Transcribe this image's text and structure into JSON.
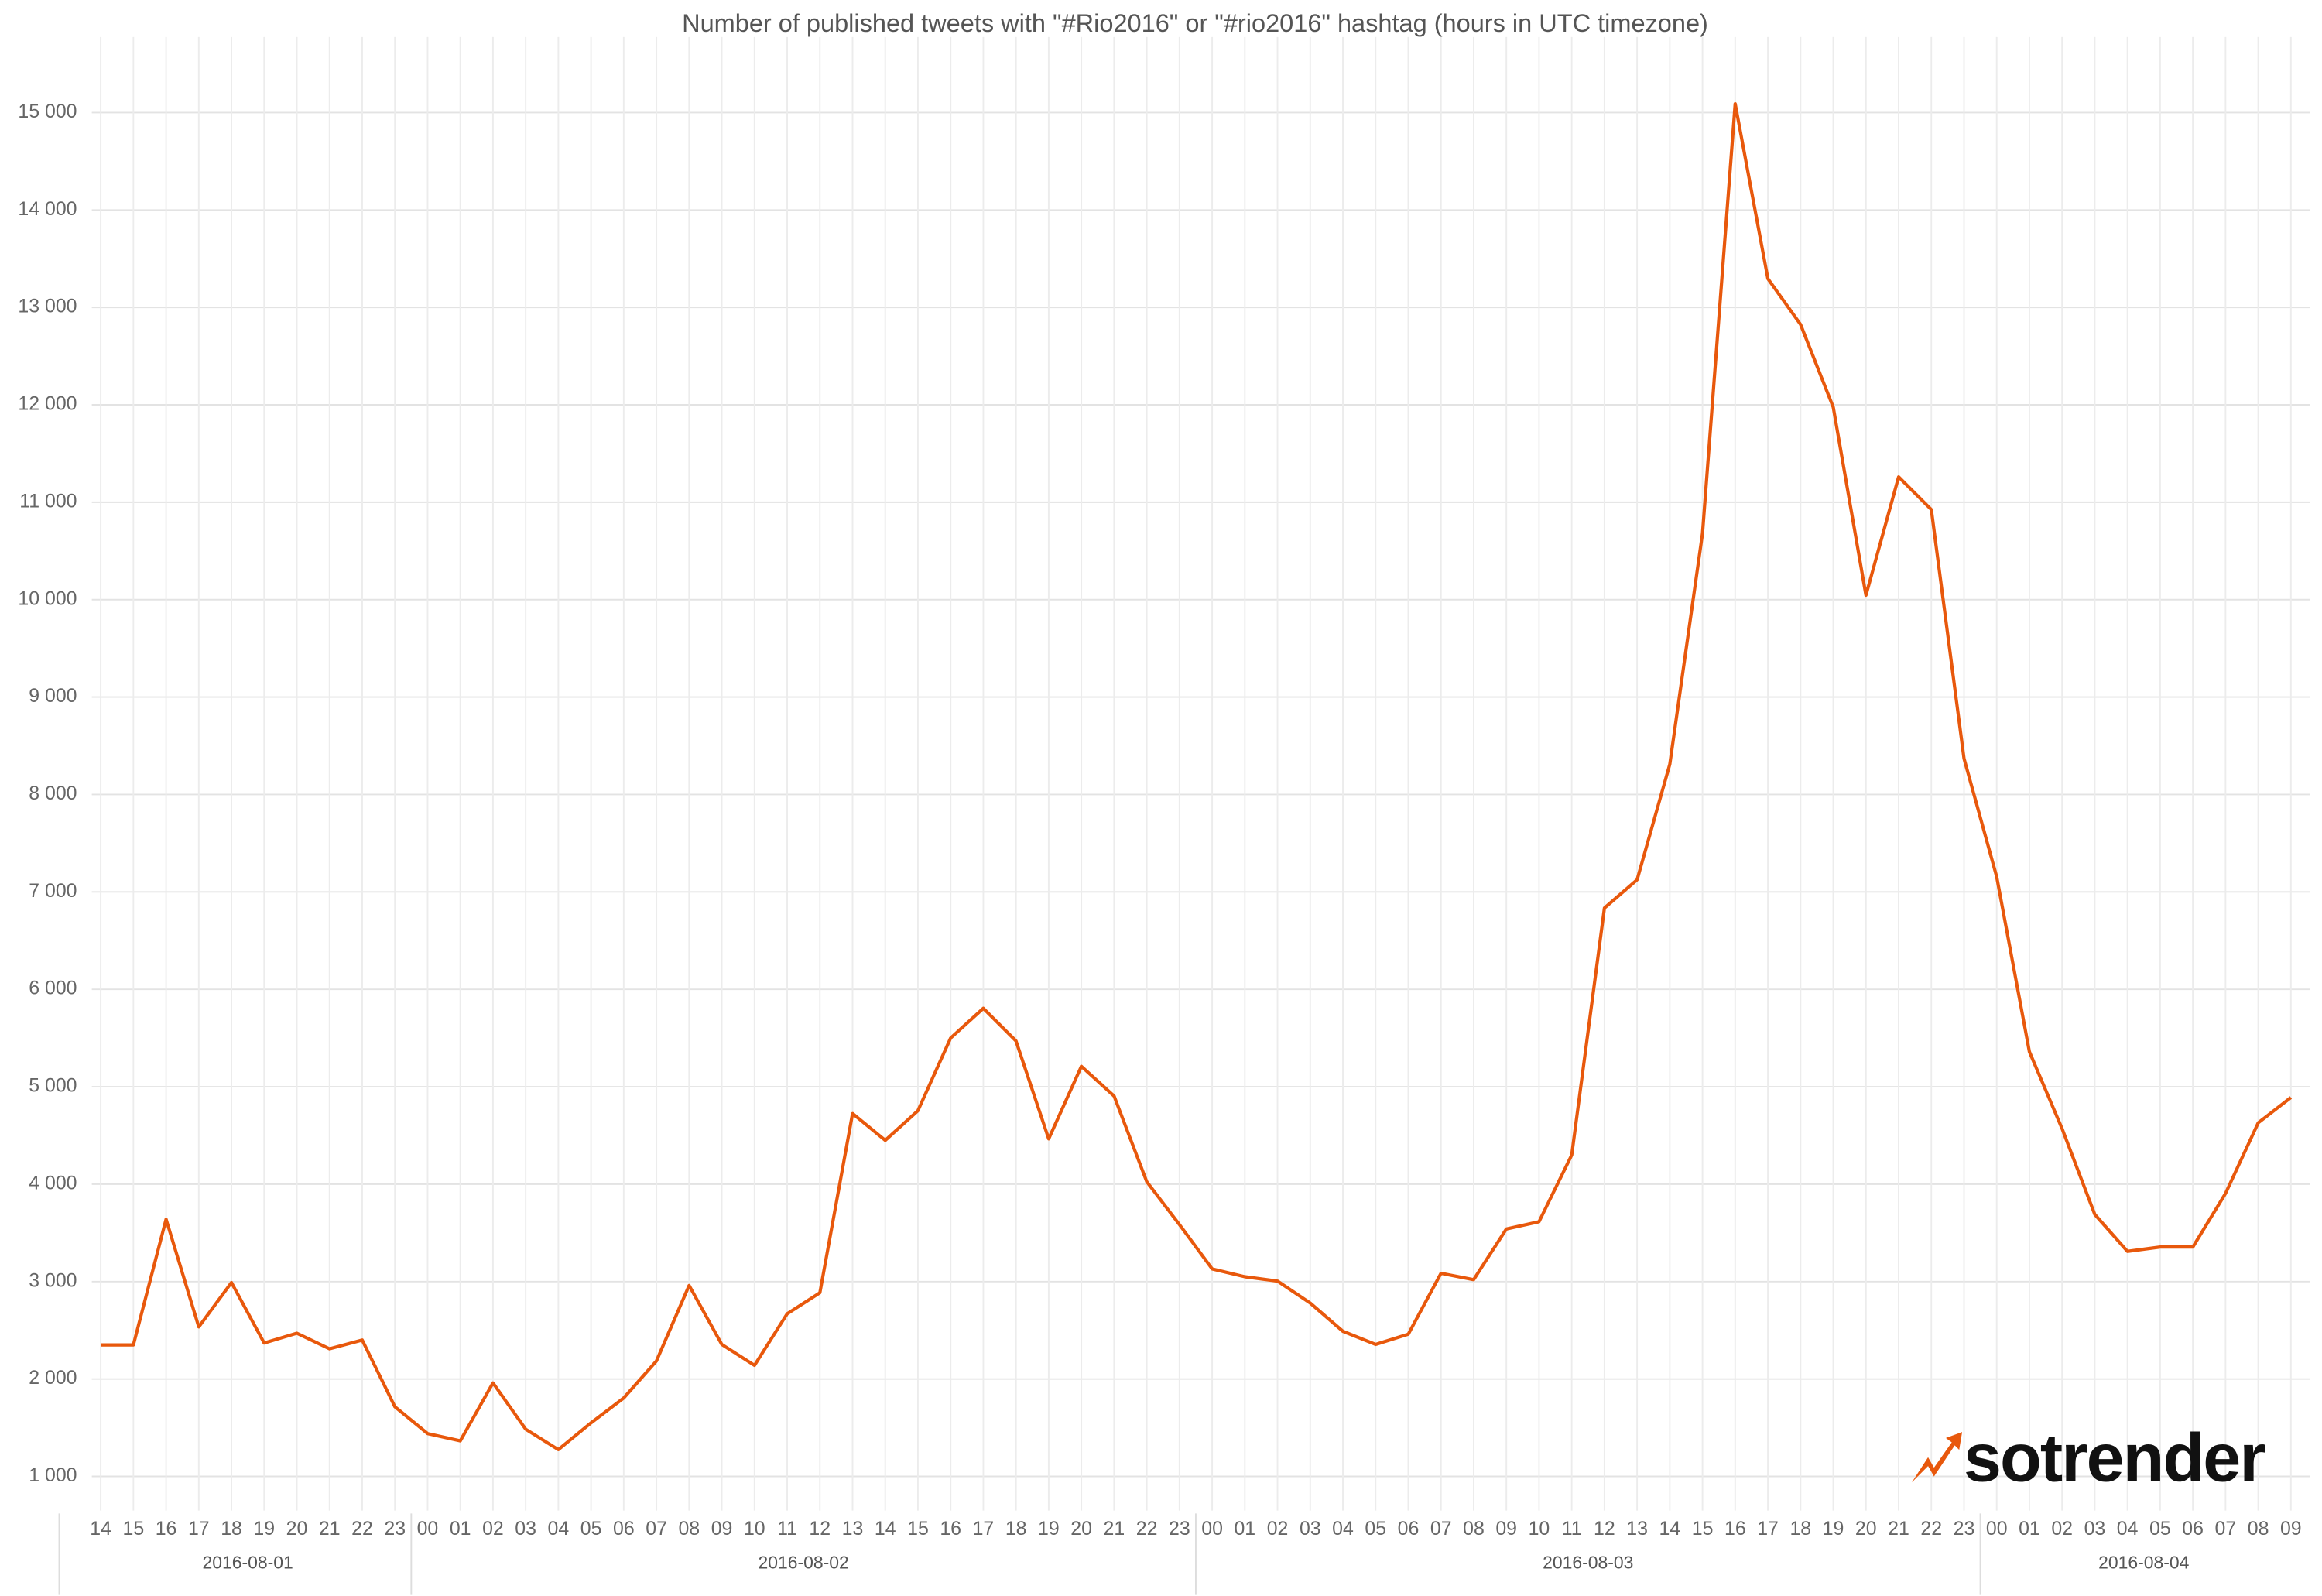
{
  "chart_data": {
    "type": "line",
    "title": "Number of published tweets with \"#Rio2016\" or \"#rio2016\" hashtag (hours in UTC timezone)",
    "x": [
      "14",
      "15",
      "16",
      "17",
      "18",
      "19",
      "20",
      "21",
      "22",
      "23",
      "00",
      "01",
      "02",
      "03",
      "04",
      "05",
      "06",
      "07",
      "08",
      "09",
      "10",
      "11",
      "12",
      "13",
      "14",
      "15",
      "16",
      "17",
      "18",
      "19",
      "20",
      "21",
      "22",
      "23",
      "00",
      "01",
      "02",
      "03",
      "04",
      "05",
      "06",
      "07",
      "08",
      "09",
      "10",
      "11",
      "12",
      "13",
      "14",
      "15",
      "16",
      "17",
      "18",
      "19",
      "20",
      "21",
      "22",
      "23",
      "00",
      "01",
      "02",
      "03",
      "04",
      "05",
      "06",
      "07",
      "08",
      "09"
    ],
    "dates": [
      "2016-08-01",
      "2016-08-01",
      "2016-08-01",
      "2016-08-01",
      "2016-08-01",
      "2016-08-01",
      "2016-08-01",
      "2016-08-01",
      "2016-08-01",
      "2016-08-01",
      "2016-08-02",
      "2016-08-02",
      "2016-08-02",
      "2016-08-02",
      "2016-08-02",
      "2016-08-02",
      "2016-08-02",
      "2016-08-02",
      "2016-08-02",
      "2016-08-02",
      "2016-08-02",
      "2016-08-02",
      "2016-08-02",
      "2016-08-02",
      "2016-08-02",
      "2016-08-02",
      "2016-08-02",
      "2016-08-02",
      "2016-08-02",
      "2016-08-02",
      "2016-08-02",
      "2016-08-02",
      "2016-08-02",
      "2016-08-02",
      "2016-08-03",
      "2016-08-03",
      "2016-08-03",
      "2016-08-03",
      "2016-08-03",
      "2016-08-03",
      "2016-08-03",
      "2016-08-03",
      "2016-08-03",
      "2016-08-03",
      "2016-08-03",
      "2016-08-03",
      "2016-08-03",
      "2016-08-03",
      "2016-08-03",
      "2016-08-03",
      "2016-08-03",
      "2016-08-03",
      "2016-08-03",
      "2016-08-03",
      "2016-08-03",
      "2016-08-03",
      "2016-08-03",
      "2016-08-03",
      "2016-08-04",
      "2016-08-04",
      "2016-08-04",
      "2016-08-04",
      "2016-08-04",
      "2016-08-04",
      "2016-08-04",
      "2016-08-04",
      "2016-08-04",
      "2016-08-04"
    ],
    "values": [
      2350,
      2350,
      3640,
      2535,
      2990,
      2370,
      2470,
      2310,
      2400,
      1715,
      1440,
      1365,
      1960,
      1485,
      1275,
      1550,
      1805,
      2185,
      2960,
      2355,
      2140,
      2670,
      2885,
      4725,
      4450,
      4755,
      5500,
      5805,
      5470,
      4465,
      5210,
      4905,
      4025,
      3585,
      3130,
      3050,
      3005,
      2780,
      2490,
      2355,
      2460,
      3085,
      3020,
      3540,
      3615,
      4300,
      6835,
      7125,
      8310,
      10680,
      15090,
      13295,
      12825,
      11975,
      10045,
      11260,
      10925,
      8370,
      7155,
      5360,
      4570,
      3690,
      3310,
      3355,
      3355,
      3905,
      4630,
      4890
    ],
    "color": "#e8580c",
    "ylim": [
      650,
      15775
    ],
    "yticks": [
      {
        "value": 1000,
        "label": "1 000"
      },
      {
        "value": 2000,
        "label": "2 000"
      },
      {
        "value": 3000,
        "label": "3 000"
      },
      {
        "value": 4000,
        "label": "4 000"
      },
      {
        "value": 5000,
        "label": "5 000"
      },
      {
        "value": 6000,
        "label": "6 000"
      },
      {
        "value": 7000,
        "label": "7 000"
      },
      {
        "value": 8000,
        "label": "8 000"
      },
      {
        "value": 9000,
        "label": "9 000"
      },
      {
        "value": 10000,
        "label": "10 000"
      },
      {
        "value": 11000,
        "label": "11 000"
      },
      {
        "value": 12000,
        "label": "12 000"
      },
      {
        "value": 13000,
        "label": "13 000"
      },
      {
        "value": 14000,
        "label": "14 000"
      },
      {
        "value": 15000,
        "label": "15 000"
      }
    ],
    "grid": true
  },
  "logo": "sotrender"
}
